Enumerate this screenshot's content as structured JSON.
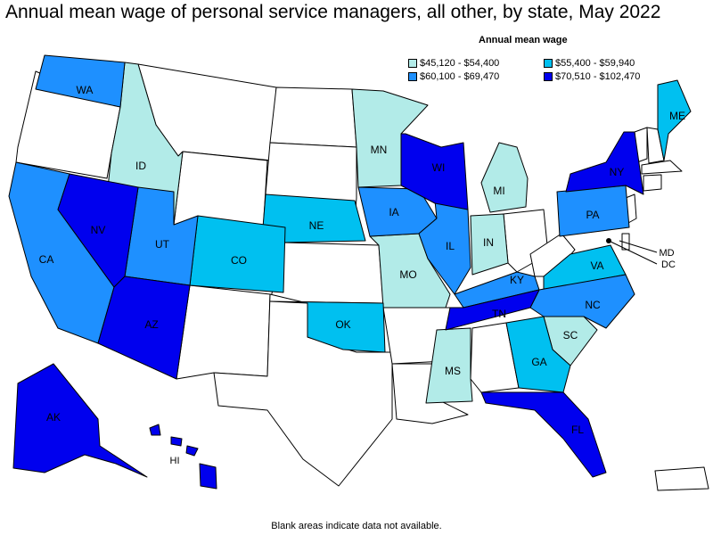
{
  "title": "Annual mean wage of personal service managers, all other, by state, May 2022",
  "legend": {
    "title": "Annual mean wage",
    "items": [
      {
        "label": "$45,120 - $54,400",
        "color": "#b2ebe8"
      },
      {
        "label": "$55,400 - $59,940",
        "color": "#00c0f0"
      },
      {
        "label": "$60,100 - $69,470",
        "color": "#1e90ff"
      },
      {
        "label": "$70,510 - $102,470",
        "color": "#0000ee"
      }
    ]
  },
  "colors": {
    "no_data": "#ffffff",
    "tier1": "#b2ebe8",
    "tier2": "#00c0f0",
    "tier3": "#1e90ff",
    "tier4": "#0000ee"
  },
  "state_labels": {
    "WA": "WA",
    "ID": "ID",
    "NV": "NV",
    "CA": "CA",
    "UT": "UT",
    "AZ": "AZ",
    "CO": "CO",
    "NE": "NE",
    "OK": "OK",
    "MN": "MN",
    "IA": "IA",
    "MO": "MO",
    "WI": "WI",
    "IL": "IL",
    "MS": "MS",
    "MI": "MI",
    "IN": "IN",
    "KY": "KY",
    "TN": "TN",
    "GA": "GA",
    "FL": "FL",
    "SC": "SC",
    "NC": "NC",
    "VA": "VA",
    "PA": "PA",
    "NY": "NY",
    "ME": "ME",
    "MD": "MD",
    "DC": "DC",
    "AK": "AK",
    "HI": "HI"
  },
  "footnote": "Blank areas indicate data not available."
}
